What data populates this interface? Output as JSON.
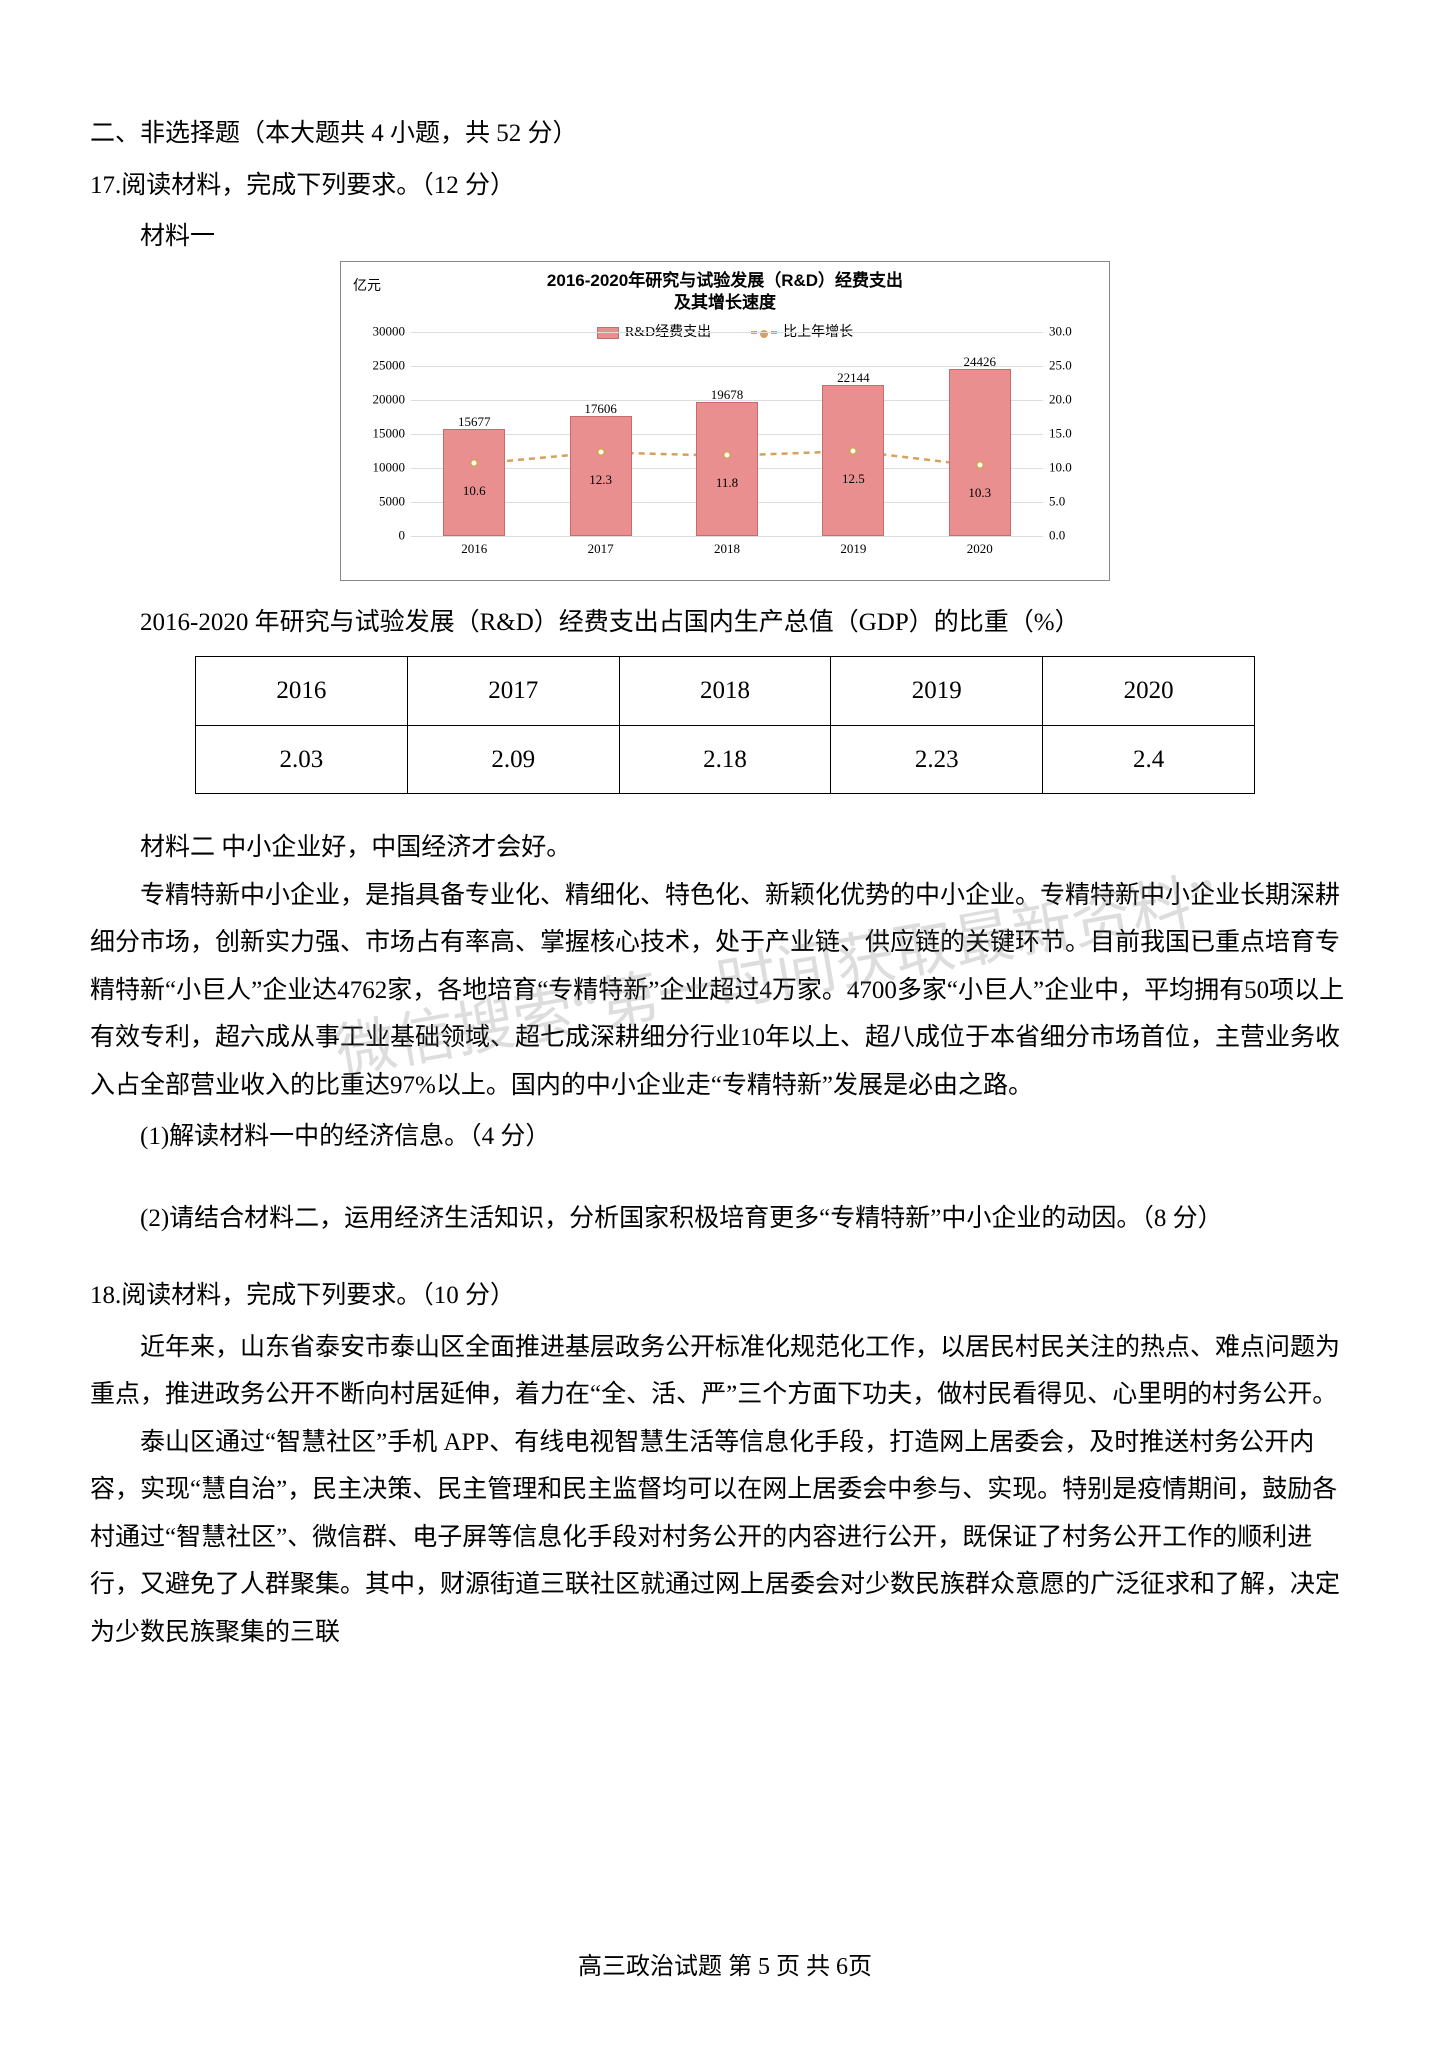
{
  "section_heading": "二、非选择题（本大题共 4 小题，共 52 分）",
  "q17": {
    "heading": "17.阅读材料，完成下列要求。（12 分）",
    "material1_label": "材料一",
    "chart": {
      "type": "bar+line",
      "title_line1": "2016-2020年研究与试验发展（R&D）经费支出",
      "title_line2": "及其增长速度",
      "y_left_unit": "亿元",
      "legend_bar": "R&D经费支出",
      "legend_line": "比上年增长",
      "categories": [
        "2016",
        "2017",
        "2018",
        "2019",
        "2020"
      ],
      "bar_values": [
        15677,
        17606,
        19678,
        22144,
        24426
      ],
      "line_values": [
        10.6,
        12.3,
        11.8,
        12.5,
        10.3
      ],
      "y_left_max": 30000,
      "y_left_ticks": [
        "0",
        "5000",
        "10000",
        "15000",
        "20000",
        "25000",
        "30000"
      ],
      "y_right_max": 30,
      "y_right_ticks": [
        "0.0",
        "5.0",
        "10.0",
        "15.0",
        "20.0",
        "25.0",
        "30.0"
      ],
      "bar_color": "#e98f8f",
      "bar_border": "#c96b6b",
      "line_color": "#d8a05a",
      "grid_color": "#dddddd",
      "background_color": "#ffffff",
      "title_fontsize": 17,
      "tick_fontsize": 13
    },
    "table_caption": "2016-2020 年研究与试验发展（R&D）经费支出占国内生产总值（GDP）的比重（%）",
    "table": {
      "columns": [
        "2016",
        "2017",
        "2018",
        "2019",
        "2020"
      ],
      "rows": [
        [
          "2.03",
          "2.09",
          "2.18",
          "2.23",
          "2.4"
        ]
      ]
    },
    "material2_label": "材料二  中小企业好，中国经济才会好。",
    "body": [
      "专精特新中小企业，是指具备专业化、精细化、特色化、新颖化优势的中小企业。专精特新中小企业长期深耕细分市场，创新实力强、市场占有率高、掌握核心技术，处于产业链、供应链的关键环节。目前我国已重点培育专精特新“小巨人”企业达4762家，各地培育“专精特新”企业超过4万家。4700多家“小巨人”企业中，平均拥有50项以上有效专利，超六成从事工业基础领域、超七成深耕细分行业10年以上、超八成位于本省细分市场首位，主营业务收入占全部营业收入的比重达97%以上。国内的中小企业走“专精特新”发展是必由之路。"
    ],
    "sub1": "(1)解读材料一中的经济信息。（4 分）",
    "sub2": "(2)请结合材料二，运用经济生活知识，分析国家积极培育更多“专精特新”中小企业的动因。（8 分）"
  },
  "q18": {
    "heading": "18.阅读材料，完成下列要求。（10 分）",
    "paras": [
      "近年来，山东省泰安市泰山区全面推进基层政务公开标准化规范化工作，以居民村民关注的热点、难点问题为重点，推进政务公开不断向村居延伸，着力在“全、活、严”三个方面下功夫，做村民看得见、心里明的村务公开。",
      "泰山区通过“智慧社区”手机 APP、有线电视智慧生活等信息化手段，打造网上居委会，及时推送村务公开内容，实现“慧自治”，民主决策、民主管理和民主监督均可以在网上居委会中参与、实现。特别是疫情期间，鼓励各村通过“智慧社区”、微信群、电子屏等信息化手段对村务公开的内容进行公开，既保证了村务公开工作的顺利进行，又避免了人群聚集。其中，财源街道三联社区就通过网上居委会对少数民族群众意愿的广泛征求和了解，决定为少数民族聚集的三联"
    ]
  },
  "footer": "高三政治试题  第 5 页  共 6页",
  "watermark1": "微信搜索“第一时间获取最新资料”",
  "watermark2": "微信“第一时间获取最新资料”"
}
